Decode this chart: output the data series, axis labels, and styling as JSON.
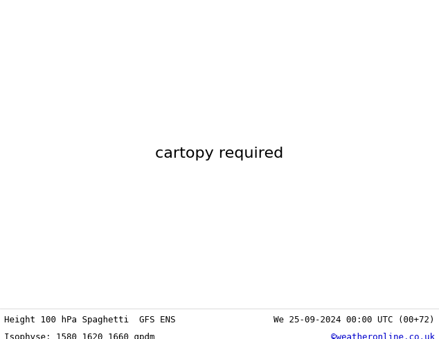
{
  "title_left": "Height 100 hPa Spaghetti  GFS ENS",
  "title_right": "We 25-09-2024 00:00 UTC (00+72)",
  "subtitle_left": "Isophyse: 1580 1620 1660 gpdm",
  "subtitle_right": "©weatheronline.co.uk",
  "subtitle_right_color": "#0000cc",
  "bg_color": "#ffffff",
  "land_color": "#c8f0c8",
  "ocean_color": "#e8e8e8",
  "border_color": "#aaaaaa",
  "footer_bg": "#ffffff",
  "text_color": "#000000",
  "font_size": 9,
  "fig_width": 6.34,
  "fig_height": 4.9,
  "map_extent": [
    -75,
    60,
    25,
    80
  ],
  "spaghetti_colors": [
    "#808080",
    "#808080",
    "#808080",
    "#808080",
    "#808080",
    "#808080",
    "#808080",
    "#808080",
    "#808080",
    "#808080",
    "#ff0000",
    "#ff6600",
    "#ffcc00",
    "#00cc00",
    "#00ccff",
    "#0000ff",
    "#cc00cc",
    "#ff00ff",
    "#ff9900",
    "#00ff99",
    "#ff3333",
    "#3366ff",
    "#cc3300",
    "#ff66cc",
    "#00ff00",
    "#0099ff",
    "#990000",
    "#ff99cc",
    "#66ff00",
    "#00cccc",
    "#cc6600",
    "#6600cc",
    "#ff6699",
    "#33ccff",
    "#99ff00",
    "#cc00ff",
    "#ff0066",
    "#009999",
    "#ffcc33",
    "#cc3300"
  ],
  "label_color_1620": "#00ccff",
  "label_color_1580": "#ff0000",
  "label_color_1660": "#ffcc00",
  "label_color_1620b": "#ff00ff",
  "label_color_1820": "#00cc00"
}
